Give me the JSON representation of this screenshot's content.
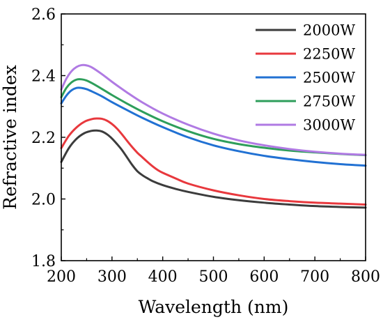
{
  "chart_data": {
    "type": "line",
    "title": "",
    "xlabel": "Wavelength (nm)",
    "ylabel": "Refractive index",
    "xlim": [
      200,
      800
    ],
    "ylim": [
      1.8,
      2.6
    ],
    "xticks": [
      200,
      300,
      400,
      500,
      600,
      700,
      800
    ],
    "yticks": [
      1.8,
      2.0,
      2.2,
      2.4,
      2.6
    ],
    "xtick_labels": [
      "200",
      "300",
      "400",
      "500",
      "600",
      "700",
      "800"
    ],
    "ytick_labels": [
      "1.8",
      "2.0",
      "2.2",
      "2.4",
      "2.6"
    ],
    "grid": false,
    "legend_position": "top-right",
    "series": [
      {
        "name": "2000W",
        "color": "#3c3c3c",
        "x": [
          200,
          215,
          230,
          245,
          260,
          270,
          280,
          290,
          300,
          310,
          320,
          330,
          340,
          350,
          360,
          370,
          380,
          400,
          425,
          450,
          500,
          550,
          600,
          650,
          700,
          750,
          800
        ],
        "y": [
          2.12,
          2.165,
          2.195,
          2.213,
          2.221,
          2.222,
          2.219,
          2.21,
          2.196,
          2.178,
          2.158,
          2.134,
          2.11,
          2.09,
          2.077,
          2.067,
          2.058,
          2.045,
          2.033,
          2.023,
          2.007,
          1.996,
          1.988,
          1.982,
          1.977,
          1.974,
          1.972
        ]
      },
      {
        "name": "2250W",
        "color": "#e8383d",
        "x": [
          200,
          215,
          230,
          245,
          260,
          270,
          280,
          290,
          300,
          310,
          320,
          330,
          340,
          350,
          360,
          370,
          380,
          390,
          400,
          425,
          450,
          500,
          550,
          600,
          650,
          700,
          750,
          800
        ],
        "y": [
          2.165,
          2.205,
          2.232,
          2.25,
          2.259,
          2.261,
          2.26,
          2.254,
          2.243,
          2.228,
          2.209,
          2.188,
          2.168,
          2.15,
          2.135,
          2.12,
          2.106,
          2.094,
          2.085,
          2.067,
          2.05,
          2.028,
          2.012,
          2.0,
          1.993,
          1.988,
          1.985,
          1.982
        ]
      },
      {
        "name": "2500W",
        "color": "#2171d3",
        "x": [
          200,
          210,
          220,
          230,
          240,
          250,
          260,
          280,
          300,
          330,
          360,
          400,
          450,
          500,
          550,
          600,
          650,
          700,
          750,
          800
        ],
        "y": [
          2.31,
          2.335,
          2.352,
          2.36,
          2.36,
          2.356,
          2.349,
          2.333,
          2.314,
          2.288,
          2.263,
          2.233,
          2.2,
          2.174,
          2.155,
          2.14,
          2.129,
          2.12,
          2.113,
          2.108
        ]
      },
      {
        "name": "2750W",
        "color": "#2e9e5b",
        "x": [
          200,
          210,
          220,
          230,
          240,
          250,
          260,
          280,
          300,
          330,
          360,
          400,
          450,
          500,
          550,
          600,
          650,
          700,
          750,
          800
        ],
        "y": [
          2.33,
          2.36,
          2.378,
          2.387,
          2.388,
          2.384,
          2.376,
          2.357,
          2.337,
          2.309,
          2.283,
          2.252,
          2.22,
          2.195,
          2.178,
          2.166,
          2.157,
          2.151,
          2.146,
          2.142
        ]
      },
      {
        "name": "3000W",
        "color": "#b07ae3",
        "x": [
          200,
          210,
          220,
          230,
          240,
          250,
          260,
          280,
          300,
          330,
          360,
          400,
          450,
          500,
          550,
          600,
          650,
          700,
          750,
          800
        ],
        "y": [
          2.355,
          2.39,
          2.414,
          2.428,
          2.434,
          2.433,
          2.427,
          2.405,
          2.38,
          2.345,
          2.313,
          2.277,
          2.241,
          2.212,
          2.19,
          2.174,
          2.162,
          2.153,
          2.147,
          2.143
        ]
      }
    ]
  }
}
